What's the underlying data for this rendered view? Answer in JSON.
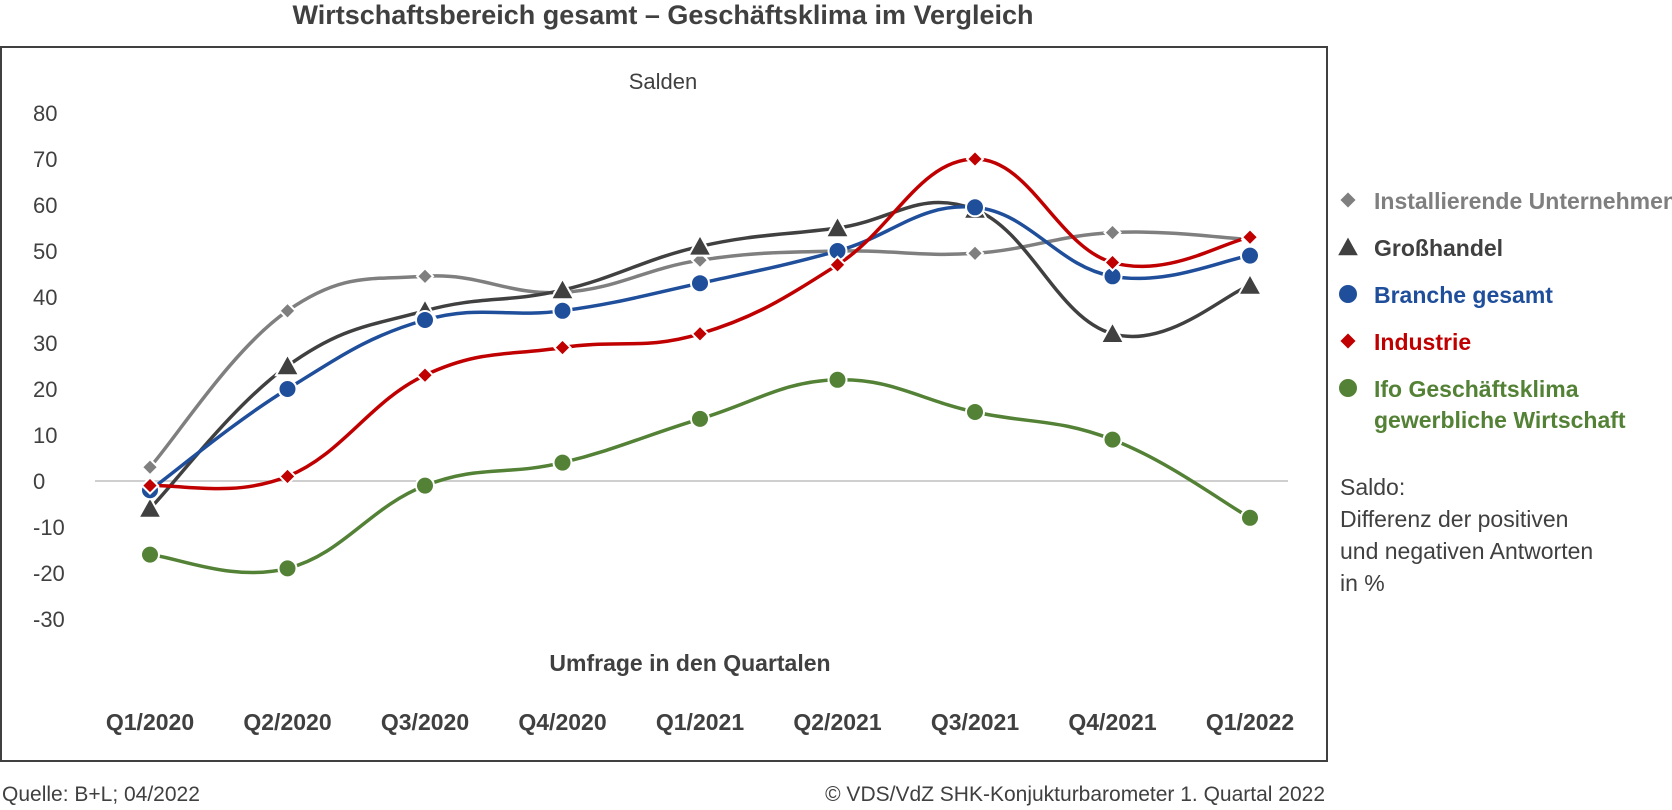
{
  "chart_data": {
    "type": "line",
    "title": "Wirtschaftsbereich gesamt – Geschäftsklima im Vergleich",
    "subtitle": "Salden",
    "xlabel": "Umfrage in den Quartalen",
    "categories": [
      "Q1/2020",
      "Q2/2020",
      "Q3/2020",
      "Q4/2020",
      "Q1/2021",
      "Q2/2021",
      "Q3/2021",
      "Q4/2021",
      "Q1/2022"
    ],
    "ylim": [
      -30,
      80
    ],
    "yticks": [
      80,
      70,
      60,
      50,
      40,
      30,
      20,
      10,
      0,
      -10,
      -20,
      -30
    ],
    "ytick_labels": [
      "80",
      "70",
      "60",
      "50",
      "40",
      "30",
      "20",
      "10",
      "0",
      "-10",
      "-20",
      "-30"
    ],
    "grid": false,
    "zero_line": true,
    "legend_position": "right",
    "series": [
      {
        "name": "Installierende Unternehmen",
        "color": "#7f7f7f",
        "marker": "diamond",
        "values": [
          3,
          37,
          44.5,
          41,
          48,
          50,
          49.5,
          54,
          52.5
        ]
      },
      {
        "name": "Großhandel",
        "color": "#404040",
        "marker": "triangle",
        "values": [
          -6,
          25,
          37,
          41.5,
          51,
          55,
          59,
          32,
          42.5
        ]
      },
      {
        "name": "Branche gesamt",
        "color": "#1f4e9b",
        "marker": "circle",
        "values": [
          -2,
          20,
          35,
          37,
          43,
          50,
          59.5,
          44.5,
          49
        ]
      },
      {
        "name": "Industrie",
        "color": "#c00000",
        "marker": "diamond",
        "values": [
          -1,
          1,
          23,
          29,
          32,
          47,
          70,
          47.5,
          53
        ]
      },
      {
        "name": "Ifo Geschäftsklima gewerbliche Wirtschaft",
        "name_lines": [
          "Ifo Geschäftsklima",
          "gewerbliche Wirtschaft"
        ],
        "color": "#538135",
        "marker": "circle",
        "values": [
          -16,
          -19,
          -1,
          4,
          13.5,
          22,
          15,
          9,
          -8
        ]
      }
    ],
    "note": [
      "Saldo:",
      "Differenz der positiven",
      "und negativen Antworten",
      "in %"
    ]
  },
  "footer": {
    "source": "Quelle: B+L; 04/2022",
    "copyright": "© VDS/VdZ SHK-Konjukturbarometer 1. Quartal 2022"
  }
}
